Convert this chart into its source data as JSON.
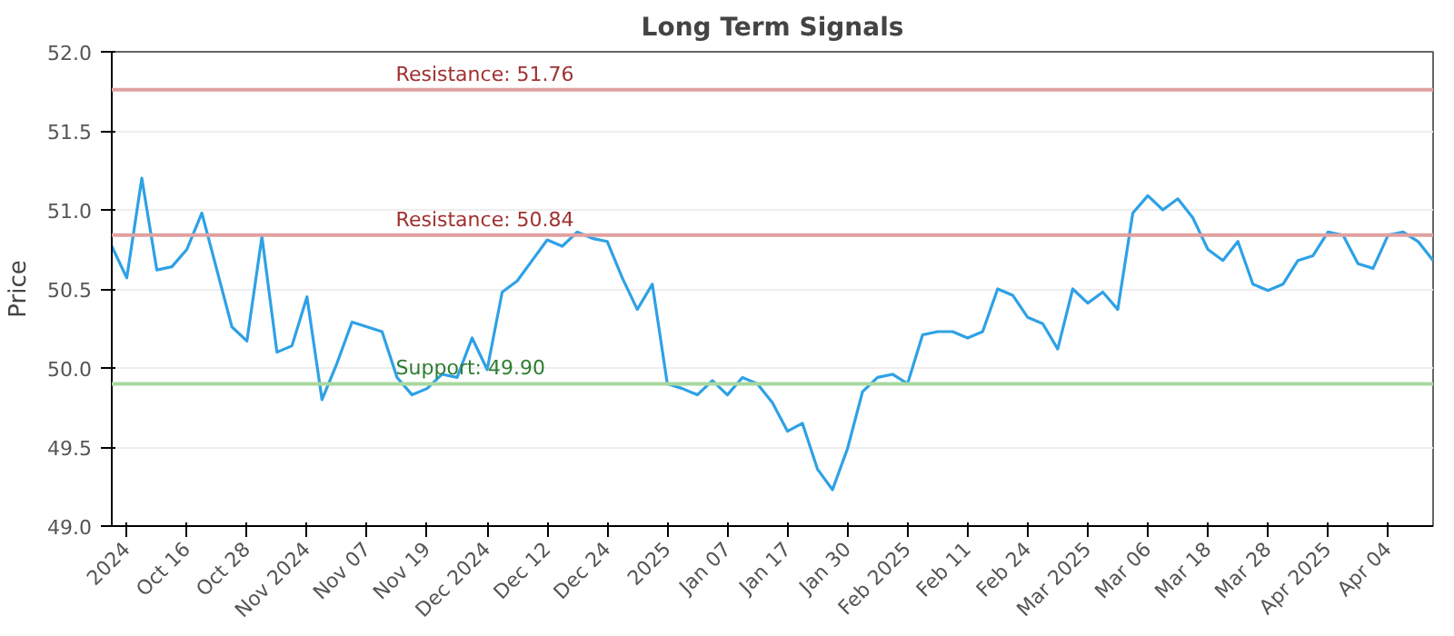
{
  "chart_data": {
    "type": "line",
    "title": "Long Term Signals",
    "ylabel": "Price",
    "categories": [
      null,
      "2024",
      null,
      null,
      null,
      "Oct 16",
      null,
      null,
      null,
      "Oct 28",
      null,
      null,
      null,
      "Nov 2024",
      null,
      null,
      null,
      "Nov 07",
      null,
      null,
      null,
      "Nov 19",
      null,
      null,
      null,
      "Dec 2024",
      null,
      null,
      null,
      "Dec 12",
      null,
      null,
      null,
      "Dec 24",
      null,
      null,
      null,
      "2025",
      null,
      null,
      null,
      "Jan 07",
      null,
      null,
      null,
      "Jan 17",
      null,
      null,
      null,
      "Jan 30",
      null,
      null,
      null,
      "Feb 2025",
      null,
      null,
      null,
      "Feb 11",
      null,
      null,
      null,
      "Feb 24",
      null,
      null,
      null,
      "Mar 2025",
      null,
      null,
      null,
      "Mar 06",
      null,
      null,
      null,
      "Mar 18",
      null,
      null,
      null,
      "Mar 28",
      null,
      null,
      null,
      "Apr 2025",
      null,
      null,
      null,
      "Apr 04",
      null,
      null,
      null
    ],
    "series": [
      {
        "color": "#2ea1e6",
        "values": [
          50.77,
          50.57,
          51.2,
          50.62,
          50.64,
          50.75,
          50.98,
          50.62,
          50.26,
          50.17,
          50.83,
          50.1,
          50.14,
          50.45,
          49.8,
          50.03,
          50.29,
          50.26,
          50.23,
          49.94,
          49.83,
          49.87,
          49.96,
          49.94,
          50.19,
          49.99,
          50.48,
          50.55,
          50.68,
          50.81,
          50.77,
          50.86,
          50.82,
          50.8,
          50.57,
          50.37,
          50.53,
          49.9,
          49.87,
          49.83,
          49.92,
          49.83,
          49.94,
          49.9,
          49.78,
          49.6,
          49.65,
          49.36,
          49.23,
          49.49,
          49.85,
          49.94,
          49.96,
          49.9,
          50.21,
          50.23,
          50.23,
          50.19,
          50.23,
          50.5,
          50.46,
          50.32,
          50.28,
          50.12,
          50.5,
          50.41,
          50.48,
          50.37,
          50.98,
          51.09,
          51.0,
          51.07,
          50.95,
          50.75,
          50.68,
          50.8,
          50.53,
          50.49,
          50.53,
          50.68,
          50.71,
          50.86,
          50.84,
          50.66,
          50.63,
          50.84,
          50.86,
          50.8,
          50.68
        ]
      }
    ],
    "ylim": [
      49,
      52
    ],
    "yticks": [
      {
        "value": 49,
        "label": "49.0"
      },
      {
        "value": 49.5,
        "label": "49.5"
      },
      {
        "value": 50,
        "label": "50.0"
      },
      {
        "value": 50.5,
        "label": "50.5"
      },
      {
        "value": 51,
        "label": "51.0"
      },
      {
        "value": 51.5,
        "label": "51.5"
      },
      {
        "value": 52,
        "label": "52.0"
      }
    ],
    "grid": "y",
    "marker": "none",
    "line_style": "solid",
    "ref_lines": [
      {
        "axis": "y",
        "value": 51.76,
        "label": "Resistance: 51.76",
        "color": "#e0a0a0"
      },
      {
        "axis": "y",
        "value": 50.84,
        "label": "Resistance: 50.84",
        "color": "#e0a0a0"
      },
      {
        "axis": "y",
        "value": 49.9,
        "label": "Support: 49.90",
        "color": "#a8d8a0"
      }
    ]
  }
}
